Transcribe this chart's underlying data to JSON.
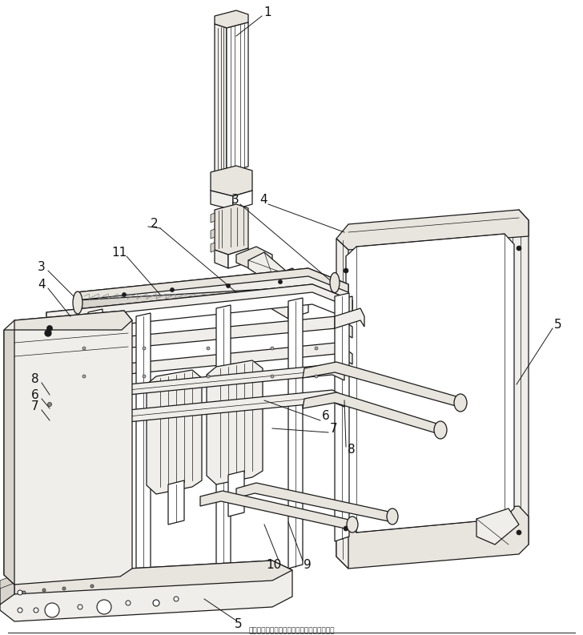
{
  "bg_color": "#ffffff",
  "line_color": "#1a1a1a",
  "fill_white": "#ffffff",
  "fill_light": "#f0eeea",
  "fill_mid": "#e8e4de",
  "fill_gray": "#d8d4ce",
  "caption": "书型盒组装机边板立起部件的制造方法与工艺",
  "figsize": [
    7.28,
    7.93
  ],
  "dpi": 100,
  "lw_main": 0.9,
  "lw_thin": 0.5
}
